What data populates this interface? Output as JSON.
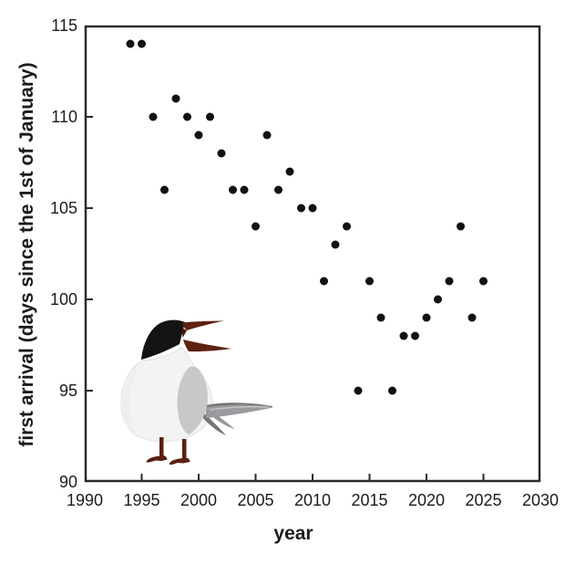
{
  "chart_data": {
    "type": "scatter",
    "title": "",
    "xlabel": "year",
    "ylabel": "first arrival (days since the 1st of January)",
    "xlim": [
      1990,
      2030
    ],
    "ylim": [
      90,
      115
    ],
    "x_ticks": [
      "1990",
      "1995",
      "2000",
      "2005",
      "2010",
      "2015",
      "2020",
      "2025",
      "2030"
    ],
    "y_ticks": [
      "115",
      "110",
      "105",
      "100",
      "95",
      "90"
    ],
    "grid": false,
    "legend_position": "none",
    "marker": {
      "shape": "circle",
      "color": "#111111",
      "radius_px": 4.5
    },
    "axis_color": "#2a2a2a",
    "text_color": "#1c1c1c",
    "points": [
      {
        "year": 1994,
        "value": 114
      },
      {
        "year": 1995,
        "value": 114
      },
      {
        "year": 1996,
        "value": 110
      },
      {
        "year": 1997,
        "value": 106
      },
      {
        "year": 1998,
        "value": 111
      },
      {
        "year": 1999,
        "value": 110
      },
      {
        "year": 2000,
        "value": 109
      },
      {
        "year": 2001,
        "value": 110
      },
      {
        "year": 2002,
        "value": 108
      },
      {
        "year": 2003,
        "value": 106
      },
      {
        "year": 2004,
        "value": 106
      },
      {
        "year": 2005,
        "value": 104
      },
      {
        "year": 2006,
        "value": 109
      },
      {
        "year": 2007,
        "value": 106
      },
      {
        "year": 2008,
        "value": 107
      },
      {
        "year": 2009,
        "value": 105
      },
      {
        "year": 2010,
        "value": 105
      },
      {
        "year": 2011,
        "value": 101
      },
      {
        "year": 2012,
        "value": 103
      },
      {
        "year": 2013,
        "value": 104
      },
      {
        "year": 2014,
        "value": 95
      },
      {
        "year": 2015,
        "value": 101
      },
      {
        "year": 2016,
        "value": 99
      },
      {
        "year": 2017,
        "value": 95
      },
      {
        "year": 2018,
        "value": 98
      },
      {
        "year": 2019,
        "value": 98
      },
      {
        "year": 2020,
        "value": 99
      },
      {
        "year": 2021,
        "value": 100
      },
      {
        "year": 2022,
        "value": 101
      },
      {
        "year": 2023,
        "value": 104
      },
      {
        "year": 2024,
        "value": 99
      },
      {
        "year": 2025,
        "value": 101
      }
    ]
  },
  "illustration": {
    "name": "common-tern",
    "description": "standing common tern with black cap, open dark-red beak, grey wing and tail, dark-red legs",
    "colors": {
      "cap": "#141414",
      "beak": "#5f2210",
      "mouth": "#4a150a",
      "body": "#f3f3f2",
      "body_stroke": "#e4e4e3",
      "body_shade": "#eeeeed",
      "wing": "#c8c8ca",
      "tail_light": "#9b9b9f",
      "tail_highlight": "#c6c6c8",
      "tail_dark": "#76767a",
      "tail_mid": "#97979b",
      "legs": "#5a1f10"
    }
  }
}
